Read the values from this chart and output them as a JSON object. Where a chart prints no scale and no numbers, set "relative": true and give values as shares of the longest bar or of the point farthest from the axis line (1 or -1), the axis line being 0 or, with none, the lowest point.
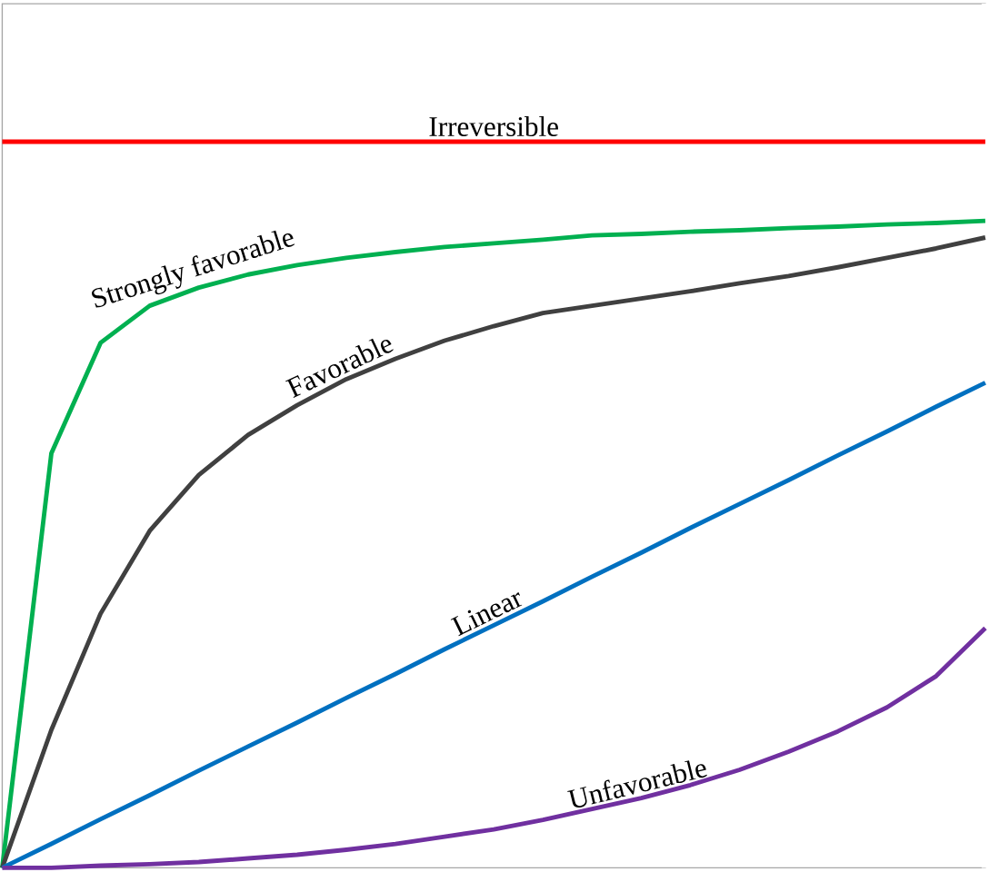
{
  "chart_data": {
    "type": "line",
    "relative": true,
    "categories": [
      null,
      null,
      null,
      null,
      null,
      null,
      null,
      null,
      null,
      null,
      null,
      null,
      null,
      null,
      null,
      null,
      null,
      null,
      null,
      null,
      null
    ],
    "series": [
      {
        "name": "Irreversible",
        "color": "#ff0000",
        "values": [
          1,
          1,
          1,
          1,
          1,
          1,
          1,
          1,
          1,
          1,
          1,
          1,
          1,
          1,
          1,
          1,
          1,
          1,
          1,
          1,
          1
        ]
      },
      {
        "name": "Strongly favorable",
        "color": "#00b050",
        "values": [
          0,
          0.571,
          0.723,
          0.774,
          0.799,
          0.817,
          0.83,
          0.84,
          0.848,
          0.855,
          0.86,
          0.865,
          0.871,
          0.873,
          0.876,
          0.878,
          0.881,
          0.883,
          0.886,
          0.888,
          0.891
        ]
      },
      {
        "name": "Favorable",
        "color": "#404040",
        "values": [
          0,
          0.19,
          0.35,
          0.464,
          0.541,
          0.596,
          0.637,
          0.673,
          0.701,
          0.726,
          0.746,
          0.764,
          0.774,
          0.784,
          0.794,
          0.805,
          0.815,
          0.827,
          0.84,
          0.853,
          0.868
        ]
      },
      {
        "name": "Linear",
        "color": "#0070c0",
        "values": [
          0,
          0.033,
          0.067,
          0.1,
          0.134,
          0.167,
          0.2,
          0.234,
          0.267,
          0.301,
          0.334,
          0.367,
          0.401,
          0.434,
          0.468,
          0.501,
          0.534,
          0.568,
          0.601,
          0.635,
          0.668
        ]
      },
      {
        "name": "Unfavorable",
        "color": "#7030a0",
        "values": [
          0,
          0,
          0.003,
          0.005,
          0.008,
          0.013,
          0.018,
          0.025,
          0.033,
          0.043,
          0.053,
          0.066,
          0.081,
          0.096,
          0.114,
          0.135,
          0.16,
          0.188,
          0.221,
          0.264,
          0.33
        ]
      }
    ],
    "marker": "none",
    "line_style": "solid"
  }
}
